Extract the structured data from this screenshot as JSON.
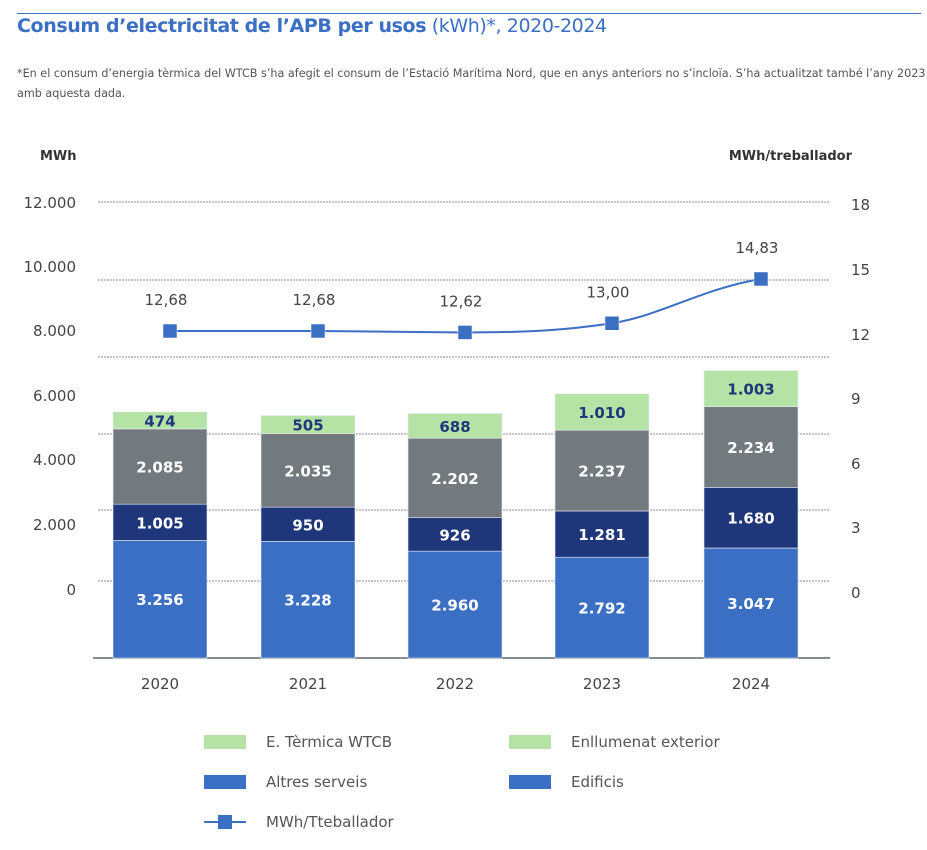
{
  "title": {
    "bold": "Consum d’electricitat de l’APB per usos",
    "light": " (kWh)*, 2020-2024"
  },
  "note": "*En el consum d’energia tèrmica del WTCB s’ha afegit el consum de l’Estació Marítima Nord, que en anys anteriors no s’incloïa. S’ha actualitzat també l’any 2023 amb aquesta dada.",
  "chart_data": {
    "type": "bar",
    "stacked": true,
    "categories": [
      "2020",
      "2021",
      "2022",
      "2023",
      "2024"
    ],
    "y_left_label": "MWh",
    "y_right_label": "MWh/treballador",
    "y_left_ticks": [
      "0",
      "2.000",
      "4.000",
      "6.000",
      "8.000",
      "10.000",
      "12.000"
    ],
    "y_right_ticks": [
      "0",
      "3",
      "6",
      "9",
      "12",
      "15",
      "18"
    ],
    "y_left_range": [
      0,
      12000
    ],
    "y_right_range": [
      0,
      18
    ],
    "grid": true,
    "legend_position": "bottom",
    "series": [
      {
        "name": "Edificis",
        "values": [
          3256,
          3228,
          2960,
          2792,
          3047
        ],
        "labels": [
          "3.256",
          "3.228",
          "2.960",
          "2.792",
          "3.047"
        ],
        "color": "#3b6fc4",
        "label_color": "#ffffff"
      },
      {
        "name": "Altres serveis",
        "values": [
          1005,
          950,
          926,
          1281,
          1680
        ],
        "labels": [
          "1.005",
          "950",
          "926",
          "1.281",
          "1.680"
        ],
        "color": "#20367a",
        "label_color": "#ffffff"
      },
      {
        "name": "E. Tèrmica WTCB",
        "values": [
          2085,
          2035,
          2202,
          2237,
          2234
        ],
        "labels": [
          "2.085",
          "2.035",
          "2.202",
          "2.237",
          "2.234"
        ],
        "color": "#737a7f",
        "label_color": "#ffffff"
      },
      {
        "name": "Enllumenat exterior",
        "values": [
          474,
          505,
          688,
          1010,
          1003
        ],
        "labels": [
          "474",
          "505",
          "688",
          "1.010",
          "1.003"
        ],
        "color": "#b5e3a6",
        "label_color": "#20367a"
      }
    ],
    "line": {
      "name": "MWh/Tteballador",
      "axis": "right",
      "values": [
        12.68,
        12.68,
        12.62,
        13.0,
        14.83
      ],
      "labels": [
        "12,68",
        "12,68",
        "12,62",
        "13,00",
        "14,83"
      ],
      "color": "#3b6fc4"
    },
    "legend": [
      {
        "label": "E. Tèrmica WTCB",
        "color": "#b5e3a6",
        "kind": "box"
      },
      {
        "label": "Enllumenat exterior",
        "color": "#b5e3a6",
        "kind": "box"
      },
      {
        "label": "Altres serveis",
        "color": "#3b6fc4",
        "kind": "box"
      },
      {
        "label": "Edificis",
        "color": "#3b6fc4",
        "kind": "box"
      },
      {
        "label": "MWh/Tteballador",
        "color": "#3b6fc4",
        "kind": "line"
      }
    ]
  }
}
